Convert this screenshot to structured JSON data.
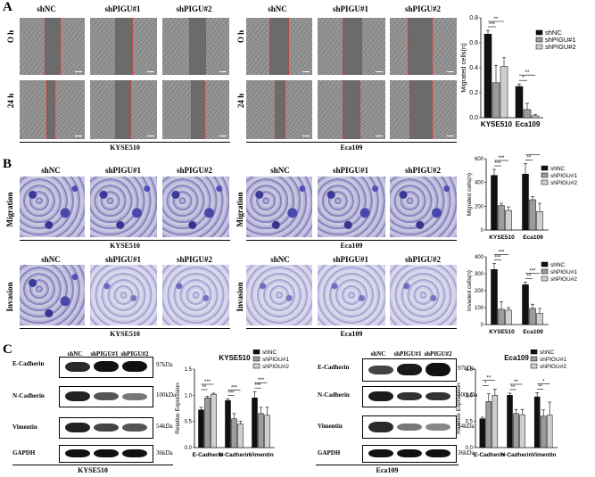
{
  "panels": {
    "a": "A",
    "b": "B",
    "c": "C"
  },
  "groups": {
    "shNC": "shNC",
    "sh1": "shPIGU#1",
    "sh2": "shPIGU#2"
  },
  "rows": {
    "h0": "O h",
    "h24": "24 h",
    "migration": "Migration",
    "invasion": "Invasion"
  },
  "cells": {
    "kyse": "KYSE510",
    "eca": "Eca109"
  },
  "blots": {
    "proteins": [
      "E-Cadherin",
      "N-Cadherin",
      "Vimentin",
      "GAPDH"
    ],
    "kda": [
      "97kDa",
      "100kDa",
      "54kDa",
      "36kDa"
    ],
    "lanes": [
      "shNC",
      "shPIGU#1",
      "shPIGU#2"
    ]
  },
  "colors": {
    "shNC": "#111111",
    "sh1": "#9c9c9c",
    "sh2": "#cfcfcf"
  },
  "chart_data": [
    {
      "type": "bar",
      "ylabel": "Migrated cells(n)",
      "categories": [
        "KYSE510",
        "Eca109"
      ],
      "ylim": [
        0,
        0.8
      ],
      "yticks": [
        "0.0",
        "0.2",
        "0.4",
        "0.6",
        "0.8"
      ],
      "legend": "top-right",
      "series": [
        {
          "name": "shNC",
          "values": [
            0.67,
            0.25
          ],
          "err": [
            0.03,
            0.02
          ]
        },
        {
          "name": "shPIGU#1",
          "values": [
            0.28,
            0.065
          ],
          "err": [
            0.14,
            0.05
          ]
        },
        {
          "name": "shPIGU#2",
          "values": [
            0.41,
            0.015
          ],
          "err": [
            0.07,
            0.01
          ]
        }
      ],
      "sig": [
        "***",
        "**",
        "*",
        "**"
      ]
    },
    {
      "type": "bar",
      "ylabel": "Migrated cells(n)",
      "categories": [
        "KYSE510",
        "Eca109"
      ],
      "ylim": [
        0,
        600
      ],
      "yticks": [
        "0",
        "200",
        "400",
        "600"
      ],
      "legend": "top-right",
      "series": [
        {
          "name": "shNC",
          "values": [
            460,
            470
          ],
          "err": [
            50,
            90
          ]
        },
        {
          "name": "shPIGU#1",
          "values": [
            205,
            255
          ],
          "err": [
            20,
            25
          ]
        },
        {
          "name": "shPIGU#2",
          "values": [
            165,
            155
          ],
          "err": [
            30,
            70
          ]
        }
      ],
      "sig": [
        "***",
        "***",
        "**",
        "***"
      ]
    },
    {
      "type": "bar",
      "ylabel": "Invaded cells(n)",
      "categories": [
        "KYSE510",
        "Eca109"
      ],
      "ylim": [
        0,
        400
      ],
      "yticks": [
        "0",
        "100",
        "200",
        "300",
        "400"
      ],
      "legend": "top-right",
      "series": [
        {
          "name": "shNC",
          "values": [
            325,
            235
          ],
          "err": [
            35,
            15
          ]
        },
        {
          "name": "shPIGU#1",
          "values": [
            90,
            95
          ],
          "err": [
            45,
            25
          ]
        },
        {
          "name": "shPIGU#2",
          "values": [
            85,
            65
          ],
          "err": [
            15,
            30
          ]
        }
      ],
      "sig": [
        "***",
        "***",
        "**",
        "***"
      ]
    },
    {
      "type": "bar",
      "title": "KYSE510",
      "ylabel": "Relative Expression",
      "categories": [
        "E-Cadherin",
        "N-Cadherin",
        "Vimentin"
      ],
      "ylim": [
        0,
        1.5
      ],
      "yticks": [
        "0.0",
        "0.5",
        "1.0",
        "1.5"
      ],
      "legend": "top-right",
      "series": [
        {
          "name": "shNC",
          "values": [
            0.72,
            0.9,
            0.95
          ],
          "err": [
            0.05,
            0.03,
            0.12
          ]
        },
        {
          "name": "shPIGU#1",
          "values": [
            0.95,
            0.55,
            0.65
          ],
          "err": [
            0.03,
            0.1,
            0.12
          ]
        },
        {
          "name": "shPIGU#2",
          "values": [
            1.02,
            0.45,
            0.62
          ],
          "err": [
            0.02,
            0.05,
            0.15
          ]
        }
      ],
      "sig": [
        "**",
        "***",
        "***",
        "***",
        "***",
        "***"
      ]
    },
    {
      "type": "bar",
      "title": "Eca109",
      "ylabel": "Relative Expression",
      "categories": [
        "E-Cadherin",
        "N-Cadherin",
        "Vimentin"
      ],
      "ylim": [
        0,
        1.5
      ],
      "yticks": [
        "0.0",
        "0.5",
        "1.0",
        "1.5"
      ],
      "legend": "top-right",
      "series": [
        {
          "name": "shNC",
          "values": [
            0.55,
            1.0,
            0.97
          ],
          "err": [
            0.03,
            0.04,
            0.08
          ]
        },
        {
          "name": "shPIGU#1",
          "values": [
            0.88,
            0.65,
            0.6
          ],
          "err": [
            0.15,
            0.08,
            0.12
          ]
        },
        {
          "name": "shPIGU#2",
          "values": [
            1.0,
            0.63,
            0.62
          ],
          "err": [
            0.12,
            0.1,
            0.25
          ]
        }
      ],
      "sig": [
        "*",
        "**",
        "**",
        "**",
        "**",
        "*"
      ]
    }
  ]
}
